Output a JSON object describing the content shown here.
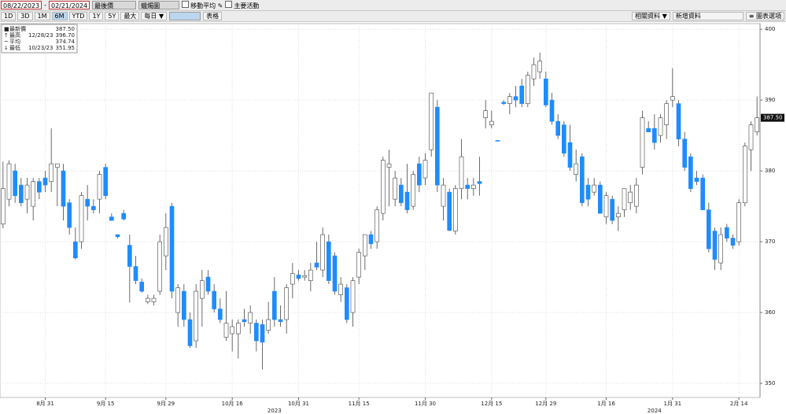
{
  "toolbar": {
    "start_date": "08/22/2023",
    "end_date": "02/21/2024",
    "price_field": "最後價",
    "chart_style": "蠟燭圖",
    "options": [
      "移動平均",
      "主要活動"
    ],
    "periods": [
      "1D",
      "3D",
      "1M",
      "6M",
      "YTD",
      "1Y",
      "5Y",
      "最大",
      "每日 ▼"
    ],
    "active_period": "6M",
    "table_button": "表格",
    "related": "相關資料 ▼",
    "add_data": "新增資料",
    "chart_options": "≡ 圖表選項"
  },
  "chart_data": {
    "type": "candlestick",
    "open": [
      372.5,
      376,
      380,
      378,
      376,
      375,
      378.5,
      379,
      378.5,
      380.5,
      380,
      375.5,
      370,
      370,
      376,
      375,
      376,
      380.5,
      373.5,
      371,
      374,
      369.5,
      366.5,
      364.3,
      361.5,
      361.5,
      363,
      368,
      375,
      360,
      363,
      359,
      356,
      362,
      365,
      363,
      360.5,
      356.5,
      357,
      357,
      359,
      358.5,
      358.5,
      358.3,
      357.5,
      363,
      359,
      359,
      364,
      365.3,
      365,
      364.5,
      367,
      366,
      370,
      368,
      362.5,
      363.5,
      360,
      365,
      368,
      371,
      370,
      374,
      380.5,
      376,
      378,
      377,
      375,
      381,
      379,
      383,
      389,
      375,
      377,
      371.5,
      377.5,
      378,
      377.5,
      378.5,
      387.5,
      386.5,
      384.3,
      389.7,
      389.5,
      390.5,
      392,
      389.5,
      393,
      394,
      393,
      390,
      387,
      386.5,
      384,
      379.5,
      382,
      378,
      377,
      378,
      373.5,
      376,
      373.5,
      374.5,
      375.5,
      375,
      380.5,
      386,
      386,
      385,
      386.5,
      390,
      389.5,
      384.5,
      382,
      379,
      379,
      374.5,
      371.5,
      367,
      372,
      370.5,
      370,
      375.5,
      383,
      385.5
    ],
    "high": [
      381.3,
      381.5,
      381,
      379,
      379,
      379,
      379,
      380,
      386,
      381,
      381,
      376,
      372,
      377,
      378,
      376,
      380,
      381,
      374,
      371,
      374.5,
      371,
      368,
      364.8,
      362.5,
      362.5,
      371,
      374,
      375.5,
      364,
      364,
      360,
      364,
      366,
      366,
      364,
      362,
      363,
      359,
      359,
      360.5,
      361,
      359,
      359,
      361.5,
      365,
      361,
      364,
      367,
      366,
      366,
      367,
      370,
      372,
      371,
      368.5,
      365,
      364,
      365,
      369,
      371,
      371.5,
      375,
      382,
      383,
      380,
      379,
      381,
      380,
      382,
      382.5,
      391,
      390,
      379,
      377.5,
      378,
      384.5,
      379,
      379,
      382,
      390,
      388.5,
      384.3,
      390,
      391,
      392,
      393,
      394,
      396,
      396.7,
      394,
      391,
      388,
      387,
      386.5,
      383,
      382.5,
      379,
      379,
      378.5,
      377,
      376.5,
      375,
      377.5,
      378,
      379,
      388.5,
      387,
      388,
      388,
      390,
      394.5,
      390,
      385.5,
      382.5,
      380,
      379.5,
      375.5,
      372,
      372,
      372.5,
      371,
      376,
      384,
      387,
      390.5
    ],
    "low": [
      371.9,
      375,
      375.5,
      375,
      374,
      373,
      376,
      377,
      377,
      375,
      373,
      371,
      367.5,
      369,
      373,
      374,
      374,
      376,
      373,
      370.5,
      373,
      361.4,
      364,
      362.8,
      361.2,
      361,
      362.5,
      366,
      362,
      358,
      358,
      355,
      355,
      358,
      362.5,
      360,
      358.5,
      356,
      354.5,
      353.5,
      358,
      357,
      354.5,
      351.95,
      357,
      358,
      358,
      357,
      362,
      364.5,
      364.5,
      363,
      366,
      365,
      364,
      362.5,
      361.5,
      358.5,
      358,
      364,
      366,
      369,
      369,
      373,
      375,
      375,
      375,
      374,
      374.5,
      377,
      378,
      382,
      377,
      373,
      371.5,
      371,
      376,
      376,
      376.5,
      376.5,
      386,
      386,
      384.2,
      389.3,
      388,
      389,
      389,
      389,
      392,
      393,
      389,
      386.5,
      384.5,
      382,
      380,
      378.5,
      375,
      375,
      376.5,
      374,
      372.5,
      372.5,
      371.5,
      373.5,
      374.5,
      374,
      379.5,
      385.5,
      383,
      384,
      384.5,
      389,
      383.5,
      380,
      377,
      378,
      374.5,
      368.5,
      366,
      366,
      370,
      369,
      369.5,
      375,
      380,
      385
    ],
    "close": [
      377.5,
      381,
      376.5,
      375.5,
      378,
      378.5,
      377,
      378,
      381,
      381,
      375,
      372,
      367.7,
      376.5,
      375,
      374.5,
      379.5,
      376.5,
      373,
      370.7,
      373.2,
      366.5,
      364.5,
      363,
      362,
      362,
      370,
      372,
      363,
      363.5,
      359,
      355.3,
      363,
      364.5,
      363,
      360.5,
      359,
      358.5,
      358,
      358.5,
      358.7,
      360,
      356,
      355.8,
      359,
      359,
      358.7,
      363.5,
      365.5,
      364.8,
      365.2,
      366,
      366.4,
      371,
      364.5,
      363,
      364,
      359,
      364.5,
      368.5,
      371,
      369.7,
      374.5,
      381.5,
      381,
      379,
      375.5,
      374.5,
      379.5,
      378,
      381.5,
      391,
      378,
      378,
      371.6,
      377.5,
      382,
      377.5,
      378,
      378.2,
      388.5,
      387,
      384.2,
      389.5,
      390.5,
      390,
      389.5,
      393.5,
      395,
      395.5,
      389.3,
      387,
      385,
      382.5,
      380.5,
      381,
      375.5,
      376,
      378,
      374,
      376.5,
      373,
      374,
      377.5,
      377,
      378,
      387.5,
      385.5,
      384,
      387.5,
      389.5,
      390.5,
      384.5,
      380.5,
      377.5,
      378.5,
      374.5,
      369,
      367.5,
      371,
      370.5,
      369.5,
      375.5,
      383.5,
      386.5,
      387.5
    ],
    "up_color": "#ffffff",
    "down_color": "#1e8cff",
    "edge_color": "#444444",
    "ylim": [
      348,
      400.8
    ],
    "yticks": [
      350,
      360,
      370,
      380,
      390,
      400
    ],
    "y_axis_side": "right",
    "xticks": [
      {
        "value": 7,
        "label": "8月 31"
      },
      {
        "value": 17,
        "label": "9月 15"
      },
      {
        "value": 27,
        "label": "9月 29"
      },
      {
        "value": 38,
        "label": "10月 16"
      },
      {
        "value": 49,
        "label": "10月 31"
      },
      {
        "value": 59,
        "label": "11月 15"
      },
      {
        "value": 70,
        "label": "11月 30"
      },
      {
        "value": 81,
        "label": "12月 15"
      },
      {
        "value": 90,
        "label": "12月 29"
      },
      {
        "value": 100,
        "label": "1月 16"
      },
      {
        "value": 111,
        "label": "1月 31"
      },
      {
        "value": 122,
        "label": "2月 14"
      }
    ],
    "year_ticks": [
      {
        "value": 45,
        "label": "2023"
      },
      {
        "value": 108,
        "label": "2024"
      }
    ],
    "grid": true,
    "last_label": "387.50",
    "legend": [
      {
        "symbol": "■",
        "name": "最新價",
        "value": "387.50"
      },
      {
        "symbol": "↑",
        "name": "最高",
        "date": "12/28/23",
        "value": "396.70"
      },
      {
        "symbol": "~",
        "name": "平均",
        "value": "374.74"
      },
      {
        "symbol": "↓",
        "name": "最低",
        "date": "10/23/23",
        "value": "351.95"
      }
    ]
  }
}
